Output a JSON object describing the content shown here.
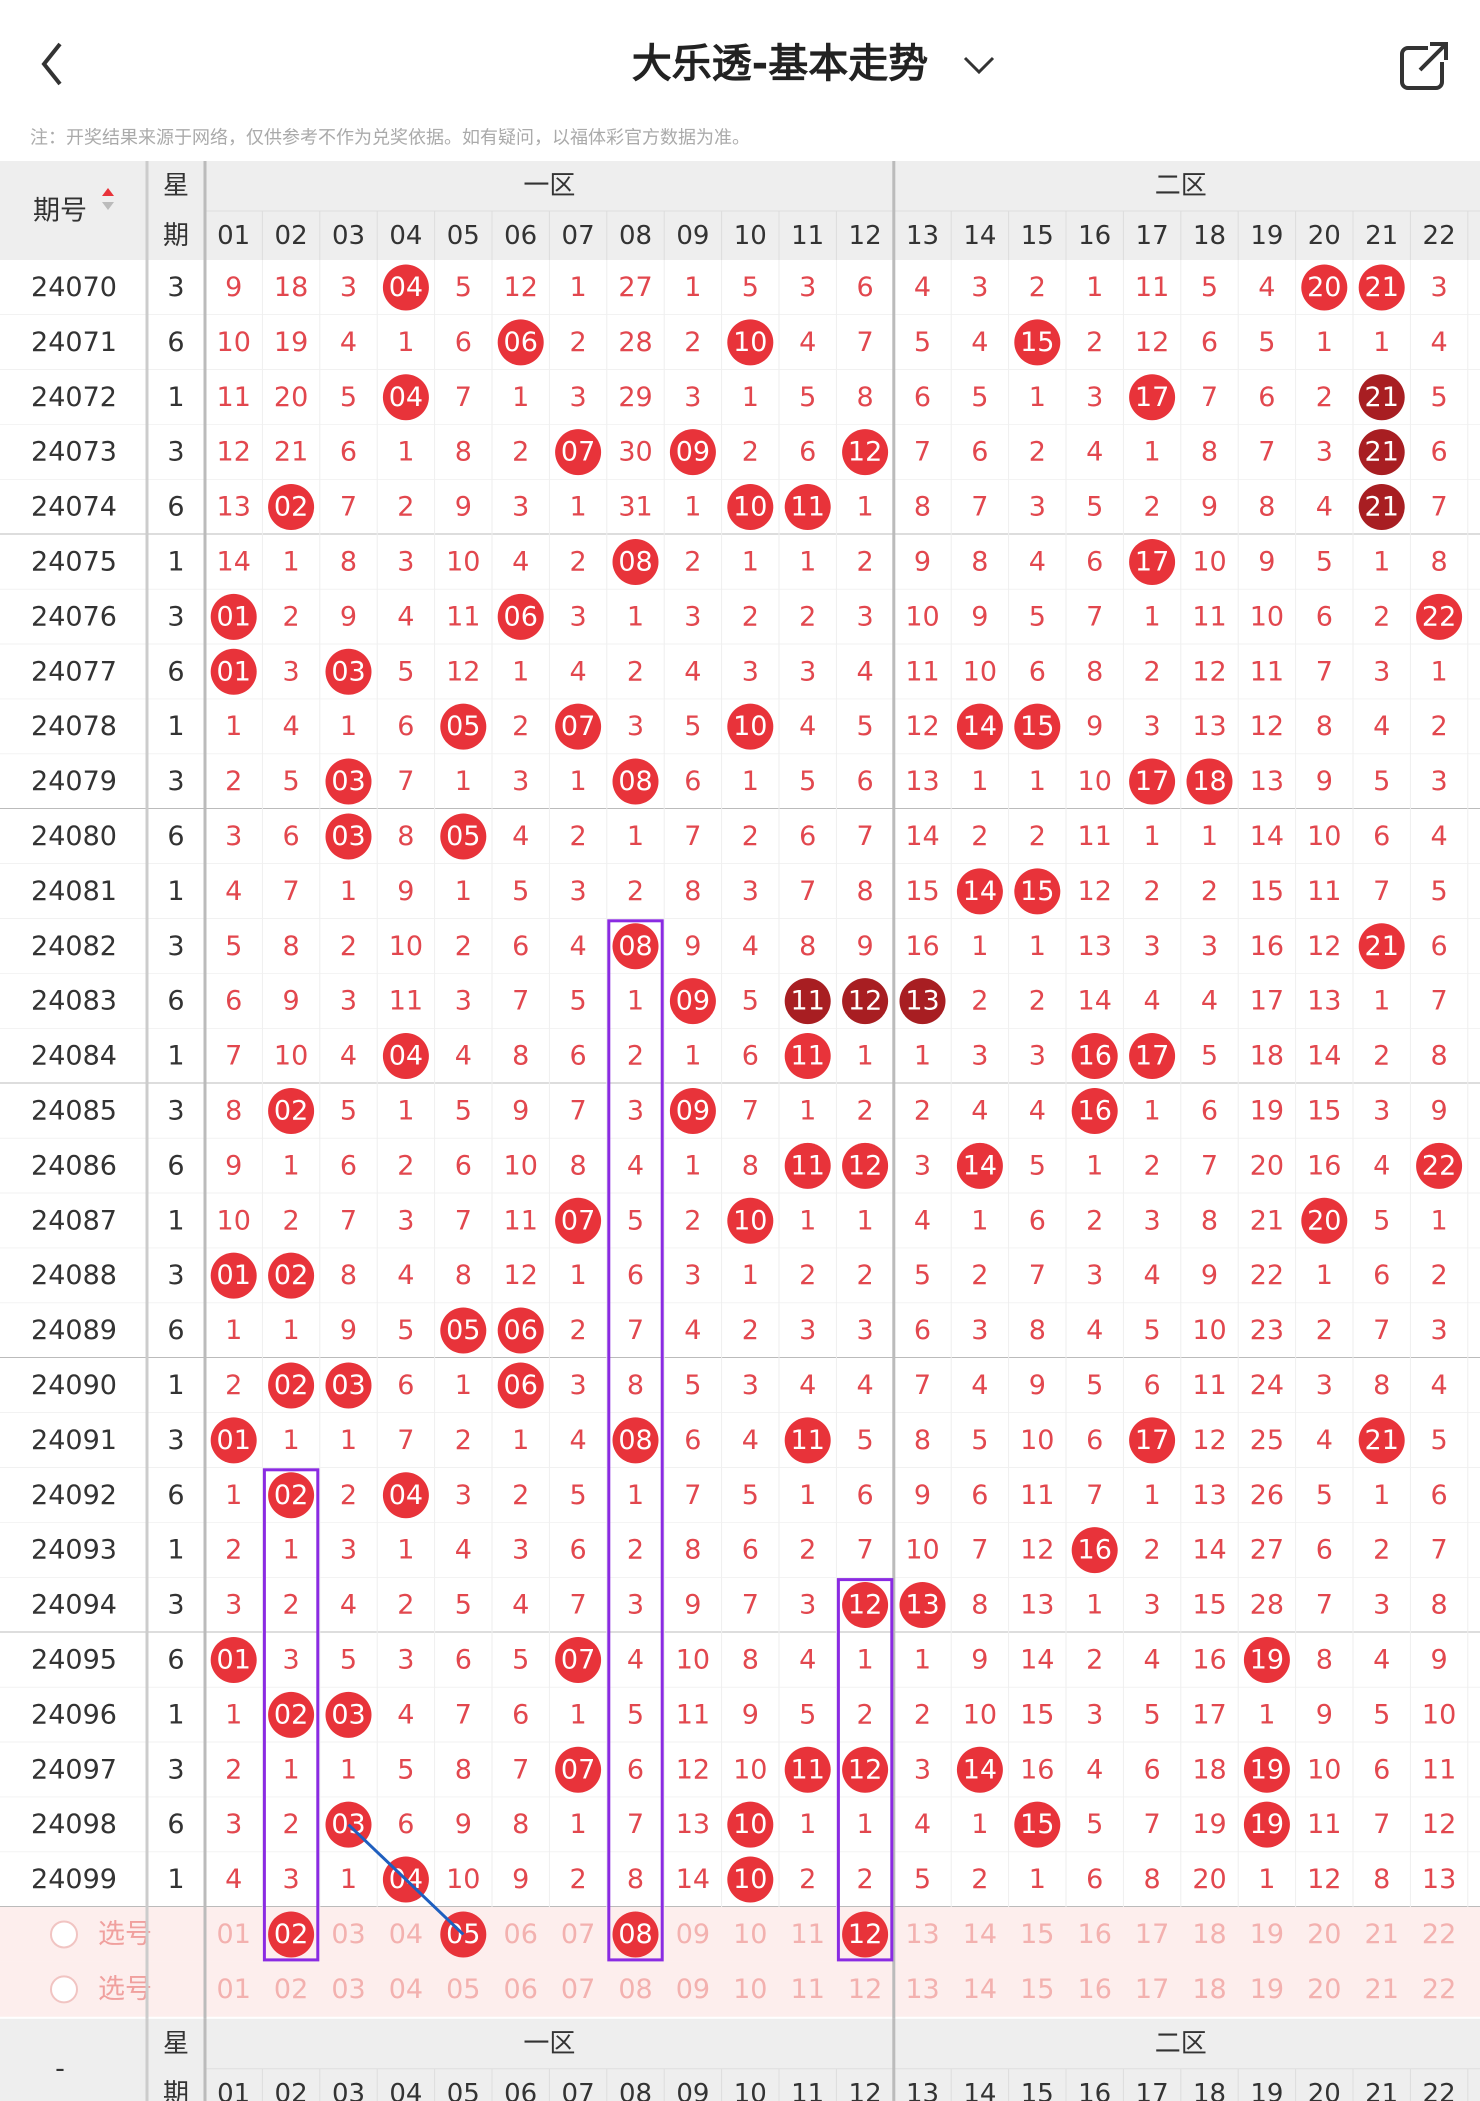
{
  "header": {
    "title": "大乐透-基本走势",
    "note": "注：开奖结果来源于网络，仅供参考不作为兑奖依据。如有疑问，以福体彩官方数据为准。"
  },
  "table": {
    "issue_label": "期号",
    "week_label": [
      "星",
      "期"
    ],
    "zones": [
      "一区",
      "二区"
    ],
    "numbers": [
      "01",
      "02",
      "03",
      "04",
      "05",
      "06",
      "07",
      "08",
      "09",
      "10",
      "11",
      "12",
      "13",
      "14",
      "15",
      "16",
      "17",
      "18",
      "19",
      "20",
      "21",
      "22"
    ],
    "rows": [
      {
        "issue": "24070",
        "week": "3",
        "cells": [
          "9",
          "18",
          "3",
          "04",
          "5",
          "12",
          "1",
          "27",
          "1",
          "5",
          "3",
          "6",
          "4",
          "3",
          "2",
          "1",
          "11",
          "5",
          "4",
          "20",
          "21",
          "3"
        ],
        "hits": [
          3,
          19,
          20
        ],
        "dark": []
      },
      {
        "issue": "24071",
        "week": "6",
        "cells": [
          "10",
          "19",
          "4",
          "1",
          "6",
          "06",
          "2",
          "28",
          "2",
          "10",
          "4",
          "7",
          "5",
          "4",
          "15",
          "2",
          "12",
          "6",
          "5",
          "1",
          "1",
          "4"
        ],
        "hits": [
          5,
          9,
          14
        ],
        "dark": []
      },
      {
        "issue": "24072",
        "week": "1",
        "cells": [
          "11",
          "20",
          "5",
          "04",
          "7",
          "1",
          "3",
          "29",
          "3",
          "1",
          "5",
          "8",
          "6",
          "5",
          "1",
          "3",
          "17",
          "7",
          "6",
          "2",
          "21",
          "5"
        ],
        "hits": [
          3,
          16,
          20
        ],
        "dark": [
          20
        ]
      },
      {
        "issue": "24073",
        "week": "3",
        "cells": [
          "12",
          "21",
          "6",
          "1",
          "8",
          "2",
          "07",
          "30",
          "09",
          "2",
          "6",
          "12",
          "7",
          "6",
          "2",
          "4",
          "1",
          "8",
          "7",
          "3",
          "21",
          "6"
        ],
        "hits": [
          6,
          8,
          11,
          20
        ],
        "dark": [
          20
        ]
      },
      {
        "issue": "24074",
        "week": "6",
        "cells": [
          "13",
          "02",
          "7",
          "2",
          "9",
          "3",
          "1",
          "31",
          "1",
          "10",
          "11",
          "1",
          "8",
          "7",
          "3",
          "5",
          "2",
          "9",
          "8",
          "4",
          "21",
          "7"
        ],
        "hits": [
          1,
          9,
          10,
          20
        ],
        "dark": [
          20
        ]
      },
      {
        "issue": "24075",
        "week": "1",
        "cells": [
          "14",
          "1",
          "8",
          "3",
          "10",
          "4",
          "2",
          "08",
          "2",
          "1",
          "1",
          "2",
          "9",
          "8",
          "4",
          "6",
          "17",
          "10",
          "9",
          "5",
          "1",
          "8"
        ],
        "hits": [
          7,
          16
        ],
        "dark": []
      },
      {
        "issue": "24076",
        "week": "3",
        "cells": [
          "01",
          "2",
          "9",
          "4",
          "11",
          "06",
          "3",
          "1",
          "3",
          "2",
          "2",
          "3",
          "10",
          "9",
          "5",
          "7",
          "1",
          "11",
          "10",
          "6",
          "2",
          "22"
        ],
        "hits": [
          0,
          5,
          21
        ],
        "dark": []
      },
      {
        "issue": "24077",
        "week": "6",
        "cells": [
          "01",
          "3",
          "03",
          "5",
          "12",
          "1",
          "4",
          "2",
          "4",
          "3",
          "3",
          "4",
          "11",
          "10",
          "6",
          "8",
          "2",
          "12",
          "11",
          "7",
          "3",
          "1"
        ],
        "hits": [
          0,
          2
        ],
        "dark": []
      },
      {
        "issue": "24078",
        "week": "1",
        "cells": [
          "1",
          "4",
          "1",
          "6",
          "05",
          "2",
          "07",
          "3",
          "5",
          "10",
          "4",
          "5",
          "12",
          "14",
          "15",
          "9",
          "3",
          "13",
          "12",
          "8",
          "4",
          "2"
        ],
        "hits": [
          4,
          6,
          9,
          13,
          14
        ],
        "dark": []
      },
      {
        "issue": "24079",
        "week": "3",
        "cells": [
          "2",
          "5",
          "03",
          "7",
          "1",
          "3",
          "1",
          "08",
          "6",
          "1",
          "5",
          "6",
          "13",
          "1",
          "1",
          "10",
          "17",
          "18",
          "13",
          "9",
          "5",
          "3"
        ],
        "hits": [
          2,
          7,
          16,
          17
        ],
        "dark": []
      },
      {
        "issue": "24080",
        "week": "6",
        "cells": [
          "3",
          "6",
          "03",
          "8",
          "05",
          "4",
          "2",
          "1",
          "7",
          "2",
          "6",
          "7",
          "14",
          "2",
          "2",
          "11",
          "1",
          "1",
          "14",
          "10",
          "6",
          "4"
        ],
        "hits": [
          2,
          4
        ],
        "dark": []
      },
      {
        "issue": "24081",
        "week": "1",
        "cells": [
          "4",
          "7",
          "1",
          "9",
          "1",
          "5",
          "3",
          "2",
          "8",
          "3",
          "7",
          "8",
          "15",
          "14",
          "15",
          "12",
          "2",
          "2",
          "15",
          "11",
          "7",
          "5"
        ],
        "hits": [
          13,
          14
        ],
        "dark": []
      },
      {
        "issue": "24082",
        "week": "3",
        "cells": [
          "5",
          "8",
          "2",
          "10",
          "2",
          "6",
          "4",
          "08",
          "9",
          "4",
          "8",
          "9",
          "16",
          "1",
          "1",
          "13",
          "3",
          "3",
          "16",
          "12",
          "21",
          "6"
        ],
        "hits": [
          7,
          20
        ],
        "dark": []
      },
      {
        "issue": "24083",
        "week": "6",
        "cells": [
          "6",
          "9",
          "3",
          "11",
          "3",
          "7",
          "5",
          "1",
          "09",
          "5",
          "11",
          "12",
          "13",
          "2",
          "2",
          "14",
          "4",
          "4",
          "17",
          "13",
          "1",
          "7"
        ],
        "hits": [
          8,
          10,
          11,
          12
        ],
        "dark": [
          10,
          11,
          12
        ]
      },
      {
        "issue": "24084",
        "week": "1",
        "cells": [
          "7",
          "10",
          "4",
          "04",
          "4",
          "8",
          "6",
          "2",
          "1",
          "6",
          "11",
          "1",
          "1",
          "3",
          "3",
          "16",
          "17",
          "5",
          "18",
          "14",
          "2",
          "8"
        ],
        "hits": [
          3,
          10,
          15,
          16
        ],
        "dark": []
      },
      {
        "issue": "24085",
        "week": "3",
        "cells": [
          "8",
          "02",
          "5",
          "1",
          "5",
          "9",
          "7",
          "3",
          "09",
          "7",
          "1",
          "2",
          "2",
          "4",
          "4",
          "16",
          "1",
          "6",
          "19",
          "15",
          "3",
          "9"
        ],
        "hits": [
          1,
          8,
          15
        ],
        "dark": []
      },
      {
        "issue": "24086",
        "week": "6",
        "cells": [
          "9",
          "1",
          "6",
          "2",
          "6",
          "10",
          "8",
          "4",
          "1",
          "8",
          "11",
          "12",
          "3",
          "14",
          "5",
          "1",
          "2",
          "7",
          "20",
          "16",
          "4",
          "22"
        ],
        "hits": [
          10,
          11,
          13,
          21
        ],
        "dark": []
      },
      {
        "issue": "24087",
        "week": "1",
        "cells": [
          "10",
          "2",
          "7",
          "3",
          "7",
          "11",
          "07",
          "5",
          "2",
          "10",
          "1",
          "1",
          "4",
          "1",
          "6",
          "2",
          "3",
          "8",
          "21",
          "20",
          "5",
          "1"
        ],
        "hits": [
          6,
          9,
          19
        ],
        "dark": []
      },
      {
        "issue": "24088",
        "week": "3",
        "cells": [
          "01",
          "02",
          "8",
          "4",
          "8",
          "12",
          "1",
          "6",
          "3",
          "1",
          "2",
          "2",
          "5",
          "2",
          "7",
          "3",
          "4",
          "9",
          "22",
          "1",
          "6",
          "2"
        ],
        "hits": [
          0,
          1
        ],
        "dark": []
      },
      {
        "issue": "24089",
        "week": "6",
        "cells": [
          "1",
          "1",
          "9",
          "5",
          "05",
          "06",
          "2",
          "7",
          "4",
          "2",
          "3",
          "3",
          "6",
          "3",
          "8",
          "4",
          "5",
          "10",
          "23",
          "2",
          "7",
          "3"
        ],
        "hits": [
          4,
          5
        ],
        "dark": []
      },
      {
        "issue": "24090",
        "week": "1",
        "cells": [
          "2",
          "02",
          "03",
          "6",
          "1",
          "06",
          "3",
          "8",
          "5",
          "3",
          "4",
          "4",
          "7",
          "4",
          "9",
          "5",
          "6",
          "11",
          "24",
          "3",
          "8",
          "4"
        ],
        "hits": [
          1,
          2,
          5
        ],
        "dark": []
      },
      {
        "issue": "24091",
        "week": "3",
        "cells": [
          "01",
          "1",
          "1",
          "7",
          "2",
          "1",
          "4",
          "08",
          "6",
          "4",
          "11",
          "5",
          "8",
          "5",
          "10",
          "6",
          "17",
          "12",
          "25",
          "4",
          "21",
          "5"
        ],
        "hits": [
          0,
          7,
          10,
          16,
          20
        ],
        "dark": []
      },
      {
        "issue": "24092",
        "week": "6",
        "cells": [
          "1",
          "02",
          "2",
          "04",
          "3",
          "2",
          "5",
          "1",
          "7",
          "5",
          "1",
          "6",
          "9",
          "6",
          "11",
          "7",
          "1",
          "13",
          "26",
          "5",
          "1",
          "6"
        ],
        "hits": [
          1,
          3
        ],
        "dark": []
      },
      {
        "issue": "24093",
        "week": "1",
        "cells": [
          "2",
          "1",
          "3",
          "1",
          "4",
          "3",
          "6",
          "2",
          "8",
          "6",
          "2",
          "7",
          "10",
          "7",
          "12",
          "16",
          "2",
          "14",
          "27",
          "6",
          "2",
          "7"
        ],
        "hits": [
          15
        ],
        "dark": []
      },
      {
        "issue": "24094",
        "week": "3",
        "cells": [
          "3",
          "2",
          "4",
          "2",
          "5",
          "4",
          "7",
          "3",
          "9",
          "7",
          "3",
          "12",
          "13",
          "8",
          "13",
          "1",
          "3",
          "15",
          "28",
          "7",
          "3",
          "8"
        ],
        "hits": [
          11,
          12
        ],
        "dark": []
      },
      {
        "issue": "24095",
        "week": "6",
        "cells": [
          "01",
          "3",
          "5",
          "3",
          "6",
          "5",
          "07",
          "4",
          "10",
          "8",
          "4",
          "1",
          "1",
          "9",
          "14",
          "2",
          "4",
          "16",
          "19",
          "8",
          "4",
          "9"
        ],
        "hits": [
          0,
          6,
          18
        ],
        "dark": []
      },
      {
        "issue": "24096",
        "week": "1",
        "cells": [
          "1",
          "02",
          "03",
          "4",
          "7",
          "6",
          "1",
          "5",
          "11",
          "9",
          "5",
          "2",
          "2",
          "10",
          "15",
          "3",
          "5",
          "17",
          "1",
          "9",
          "5",
          "10"
        ],
        "hits": [
          1,
          2
        ],
        "dark": []
      },
      {
        "issue": "24097",
        "week": "3",
        "cells": [
          "2",
          "1",
          "1",
          "5",
          "8",
          "7",
          "07",
          "6",
          "12",
          "10",
          "11",
          "12",
          "3",
          "14",
          "16",
          "4",
          "6",
          "18",
          "19",
          "10",
          "6",
          "11"
        ],
        "hits": [
          6,
          10,
          11,
          13,
          18
        ],
        "dark": []
      },
      {
        "issue": "24098",
        "week": "6",
        "cells": [
          "3",
          "2",
          "03",
          "6",
          "9",
          "8",
          "1",
          "7",
          "13",
          "10",
          "1",
          "1",
          "4",
          "1",
          "15",
          "5",
          "7",
          "19",
          "19",
          "11",
          "7",
          "12"
        ],
        "hits": [
          2,
          9,
          14,
          18
        ],
        "dark": []
      },
      {
        "issue": "24099",
        "week": "1",
        "cells": [
          "4",
          "3",
          "1",
          "04",
          "10",
          "9",
          "2",
          "8",
          "14",
          "10",
          "2",
          "2",
          "5",
          "2",
          "1",
          "6",
          "8",
          "20",
          "1",
          "12",
          "8",
          "13"
        ],
        "hits": [
          3,
          9
        ],
        "dark": []
      }
    ],
    "select_rows": [
      {
        "label": "选号",
        "picked": [
          1,
          4,
          7,
          11
        ]
      },
      {
        "label": "选号",
        "picked": []
      }
    ],
    "footer_issue_label": "-"
  }
}
